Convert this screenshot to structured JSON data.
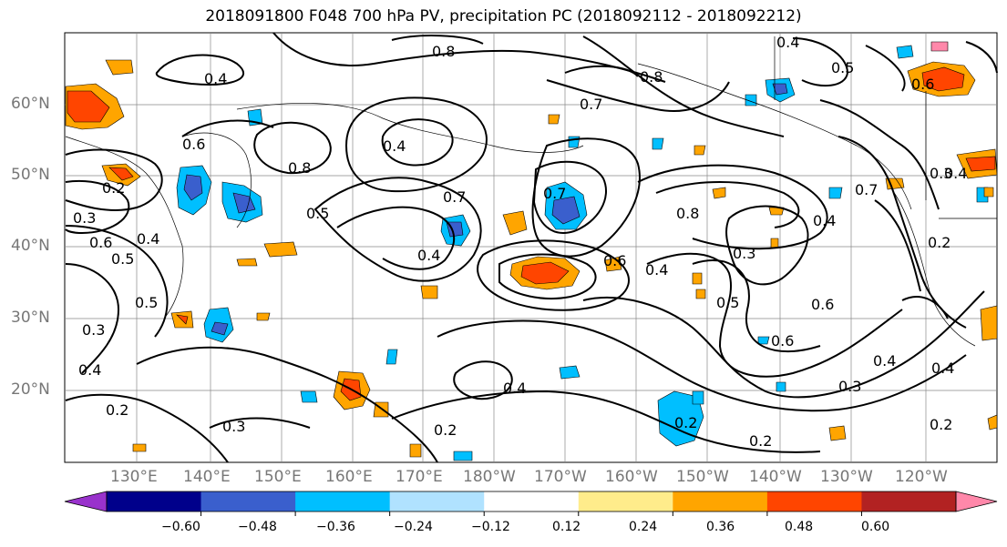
{
  "title": "2018091800 F048 700 hPa PV, precipitation PC (2018092112 - 2018092212)",
  "lat_labels": [
    "60°N",
    "50°N",
    "40°N",
    "30°N",
    "20°N"
  ],
  "lon_labels": [
    "130°E",
    "140°E",
    "150°E",
    "160°E",
    "170°E",
    "180°W",
    "170°W",
    "160°W",
    "150°W",
    "140°W",
    "130°W",
    "120°W"
  ],
  "colorbar": {
    "ticks": [
      "−0.60",
      "−0.48",
      "−0.36",
      "−0.24",
      "−0.12",
      "0.12",
      "0.24",
      "0.36",
      "0.48",
      "0.60"
    ],
    "colors": [
      "#9932cc",
      "#00008b",
      "#3a5fcd",
      "#00bfff",
      "#b0e2ff",
      "#ffffff",
      "#ffec8b",
      "#ffa500",
      "#ff4500",
      "#b22222",
      "#ff88aa"
    ]
  },
  "contour_labels": [
    "0.8",
    "0.8",
    "0.4",
    "0.5",
    "0.7",
    "0.6",
    "0.4",
    "0.3",
    "0.4",
    "0.8",
    "0.5",
    "0.2",
    "0.3",
    "0.6",
    "0.4",
    "0.5",
    "0.7",
    "0.4",
    "0.4",
    "0.6",
    "0.4",
    "0.7",
    "0.8",
    "0.4",
    "0.3",
    "0.6",
    "0.5",
    "0.6",
    "0.4",
    "0.3",
    "0.4",
    "0.2",
    "0.2",
    "0.2",
    "0.2",
    "0.2",
    "0.3",
    "0.2",
    "0.7",
    "0.4",
    "0.3",
    "0.5",
    "0.6",
    "0.4"
  ]
}
